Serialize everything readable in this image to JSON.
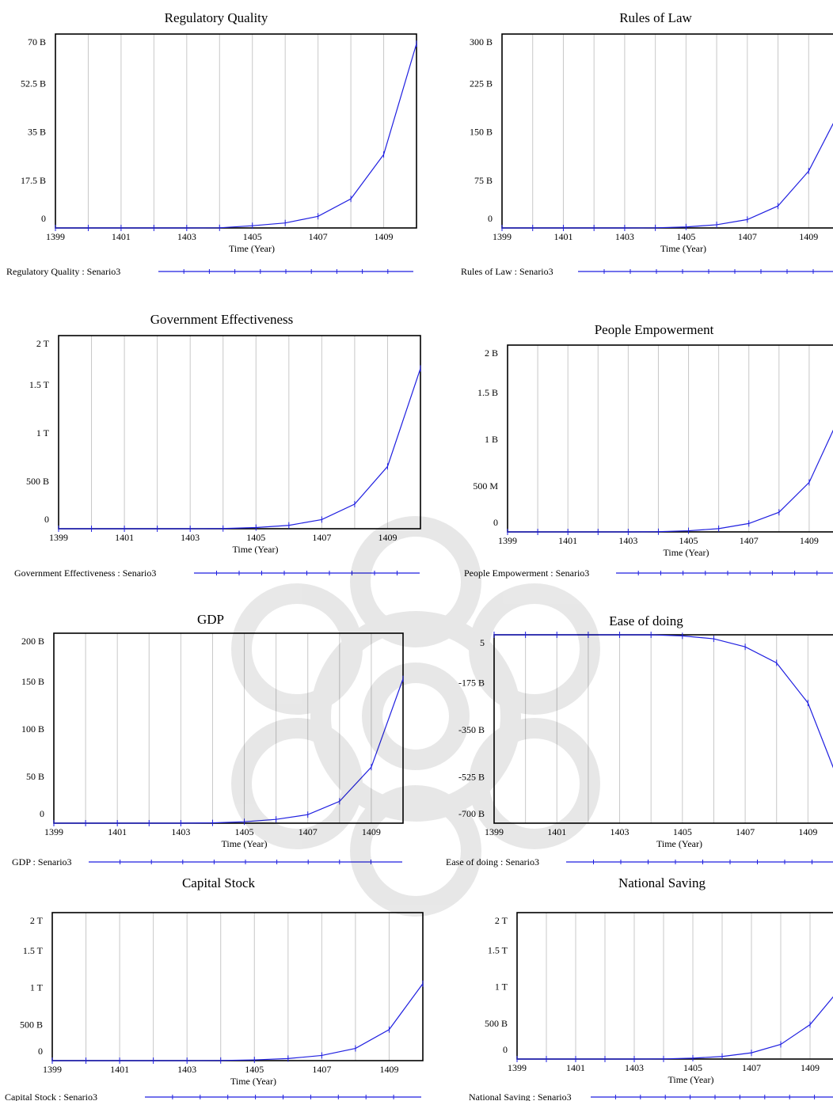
{
  "x_axis": {
    "label": "Time (Year)",
    "ticks": [
      "1399",
      "1401",
      "1403",
      "1405",
      "1407",
      "1409"
    ]
  },
  "colors": {
    "series": "#1f1fe0",
    "frame": "#000000",
    "grid": "#c8c8c8",
    "background": "#ffffff"
  },
  "chart_data": [
    {
      "type": "line",
      "title": "Regulatory Quality",
      "xlabel": "Time (Year)",
      "ylabel": "",
      "yticks": [
        "0",
        "17.5 B",
        "35 B",
        "52.5 B",
        "70 B"
      ],
      "ylim": [
        0,
        70
      ],
      "unit": "B",
      "grid": true,
      "legend": "bottom-left",
      "x": [
        1399,
        1400,
        1401,
        1402,
        1403,
        1404,
        1405,
        1406,
        1407,
        1408,
        1409,
        1410
      ],
      "series": [
        {
          "name": "Regulatory Quality : Senario3",
          "values": [
            0,
            0,
            0,
            0,
            0,
            0.05,
            0.8,
            1.8,
            4.2,
            10.5,
            26.5,
            66.5
          ]
        }
      ]
    },
    {
      "type": "line",
      "title": "Rules of Law",
      "xlabel": "Time (Year)",
      "ylabel": "",
      "yticks": [
        "0",
        "75 B",
        "150 B",
        "225 B",
        "300 B"
      ],
      "ylim": [
        0,
        300
      ],
      "unit": "B",
      "grid": true,
      "legend": "bottom-left",
      "x": [
        1399,
        1400,
        1401,
        1402,
        1403,
        1404,
        1405,
        1406,
        1407,
        1408,
        1409,
        1410
      ],
      "series": [
        {
          "name": "Rules of Law : Senario3",
          "values": [
            0,
            0,
            0,
            0,
            0,
            0.2,
            1.5,
            5,
            13,
            34,
            88,
            180
          ]
        }
      ]
    },
    {
      "type": "line",
      "title": "Government Effectiveness",
      "xlabel": "Time (Year)",
      "ylabel": "",
      "yticks": [
        "0",
        "500 B",
        "1 T",
        "1.5 T",
        "2 T"
      ],
      "ylim": [
        0,
        2000
      ],
      "unit": "B",
      "grid": true,
      "legend": "bottom-left",
      "x": [
        1399,
        1400,
        1401,
        1402,
        1403,
        1404,
        1405,
        1406,
        1407,
        1408,
        1409,
        1410
      ],
      "series": [
        {
          "name": "Government Effectiveness : Senario3",
          "values": [
            0,
            0,
            0,
            0,
            0,
            2,
            12,
            35,
            95,
            255,
            645,
            1660
          ]
        }
      ]
    },
    {
      "type": "line",
      "title": "People Empowerment",
      "xlabel": "Time (Year)",
      "ylabel": "",
      "yticks": [
        "0",
        "500 M",
        "1 B",
        "1.5 B",
        "2 B"
      ],
      "ylim": [
        0,
        2000
      ],
      "unit": "M",
      "grid": true,
      "legend": "bottom-left",
      "x": [
        1399,
        1400,
        1401,
        1402,
        1403,
        1404,
        1405,
        1406,
        1407,
        1408,
        1409,
        1410
      ],
      "series": [
        {
          "name": "People Empowerment : Senario3",
          "values": [
            0,
            0,
            0,
            0,
            0,
            2,
            12,
            35,
            90,
            210,
            530,
            1230
          ]
        }
      ]
    },
    {
      "type": "line",
      "title": "GDP",
      "xlabel": "Time (Year)",
      "ylabel": "",
      "yticks": [
        "0",
        "50 B",
        "100 B",
        "150 B",
        "200 B"
      ],
      "ylim": [
        0,
        200
      ],
      "unit": "B",
      "grid": true,
      "legend": "bottom-left",
      "x": [
        1399,
        1400,
        1401,
        1402,
        1403,
        1404,
        1405,
        1406,
        1407,
        1408,
        1409,
        1410
      ],
      "series": [
        {
          "name": "GDP : Senario3",
          "values": [
            0,
            0,
            0,
            0,
            0,
            0.3,
            1.5,
            4,
            9,
            23,
            59,
            152
          ]
        }
      ]
    },
    {
      "type": "line",
      "title": "Ease of doing",
      "xlabel": "Time (Year)",
      "ylabel": "",
      "yticks": [
        "-700 B",
        "-525 B",
        "-350 B",
        "-175 B",
        "5"
      ],
      "ylim": [
        -700,
        5
      ],
      "unit": "B",
      "grid": true,
      "legend": "bottom-left",
      "x": [
        1399,
        1400,
        1401,
        1402,
        1403,
        1404,
        1405,
        1406,
        1407,
        1408,
        1409,
        1410
      ],
      "series": [
        {
          "name": "Ease of doing : Senario3",
          "values": [
            5,
            5,
            5,
            5,
            5,
            5,
            1,
            -10,
            -40,
            -100,
            -250,
            -550
          ]
        }
      ]
    },
    {
      "type": "line",
      "title": "Capital Stock",
      "xlabel": "Time (Year)",
      "ylabel": "",
      "yticks": [
        "0",
        "500 B",
        "1 T",
        "1.5 T",
        "2 T"
      ],
      "ylim": [
        0,
        2000
      ],
      "unit": "B",
      "grid": true,
      "legend": "bottom-left",
      "x": [
        1399,
        1400,
        1401,
        1402,
        1403,
        1404,
        1405,
        1406,
        1407,
        1408,
        1409,
        1410
      ],
      "series": [
        {
          "name": "Capital Stock : Senario3",
          "values": [
            0,
            0,
            0,
            0,
            0,
            2,
            10,
            28,
            70,
            165,
            420,
            1040
          ]
        }
      ]
    },
    {
      "type": "line",
      "title": "National Saving",
      "xlabel": "Time (Year)",
      "ylabel": "",
      "yticks": [
        "0",
        "500 B",
        "1 T",
        "1.5 T",
        "2 T"
      ],
      "ylim": [
        0,
        2000
      ],
      "unit": "B",
      "grid": true,
      "legend": "bottom-left",
      "x": [
        1399,
        1400,
        1401,
        1402,
        1403,
        1404,
        1405,
        1406,
        1407,
        1408,
        1409,
        1410
      ],
      "series": [
        {
          "name": "National Saving : Senario3",
          "values": [
            0,
            0,
            0,
            0,
            0,
            2,
            12,
            35,
            85,
            200,
            470,
            950
          ]
        }
      ]
    }
  ]
}
